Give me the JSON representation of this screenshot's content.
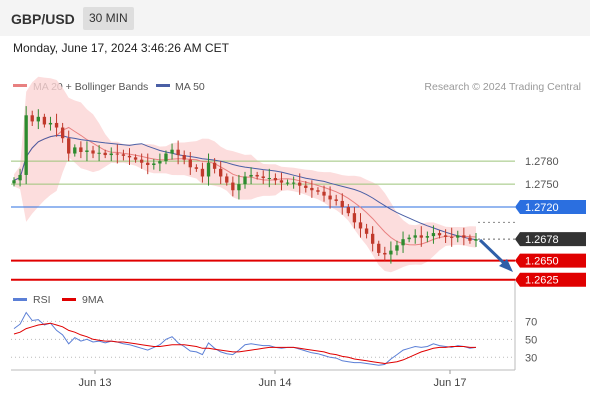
{
  "header": {
    "pair": "GBP/USD",
    "interval": "30 MIN",
    "datetime": "Monday, June 17, 2024 3:46:26 AM CET"
  },
  "legend": {
    "ma20_bb": "MA 20 + Bollinger Bands",
    "ma50": "MA 50",
    "credit": "Research © 2024 Trading Central",
    "rsi": "RSI",
    "rsi_ma": "9MA"
  },
  "colors": {
    "candle_up": "#2e8b2e",
    "candle_down": "#c0392b",
    "bollinger_fill": "#fbd5d5",
    "ma20": "#e88080",
    "ma50": "#4a5fa5",
    "support": "#e00000",
    "resistance_blue": "#2b6fe0",
    "green_level": "#9cc47a",
    "last_price": "#333333",
    "rsi": "#5b7fd6",
    "rsi_ma": "#e00000"
  },
  "chart_data": [
    {
      "type": "candlestick",
      "y_range": [
        1.2605,
        1.286
      ],
      "x_labels": [
        "Jun 13",
        "Jun 14",
        "Jun 17"
      ],
      "levels": [
        {
          "label": "1.2780",
          "value": 1.278,
          "style": "green-line"
        },
        {
          "label": "1.2750",
          "value": 1.275,
          "style": "green-line"
        },
        {
          "label": "1.2720",
          "value": 1.272,
          "style": "blue-badge"
        },
        {
          "label": "1.2678",
          "value": 1.2678,
          "style": "last-price-badge"
        },
        {
          "label": "1.2650",
          "value": 1.265,
          "style": "red-badge"
        },
        {
          "label": "1.2625",
          "value": 1.2625,
          "style": "red-badge"
        }
      ],
      "close_path": [
        1.2755,
        1.2762,
        1.284,
        1.2832,
        1.2838,
        1.2828,
        1.283,
        1.2824,
        1.281,
        1.279,
        1.2798,
        1.2792,
        1.2794,
        1.279,
        1.2791,
        1.2788,
        1.279,
        1.2789,
        1.2787,
        1.2785,
        1.2782,
        1.2778,
        1.2775,
        1.2777,
        1.278,
        1.279,
        1.2795,
        1.2788,
        1.2782,
        1.2772,
        1.277,
        1.276,
        1.2778,
        1.277,
        1.276,
        1.2752,
        1.2742,
        1.275,
        1.276,
        1.2762,
        1.276,
        1.2758,
        1.2758,
        1.2755,
        1.2752,
        1.2752,
        1.2752,
        1.2748,
        1.2745,
        1.2742,
        1.274,
        1.2735,
        1.273,
        1.2728,
        1.272,
        1.2712,
        1.27,
        1.2692,
        1.2685,
        1.2672,
        1.266,
        1.2658,
        1.2663,
        1.267,
        1.2678,
        1.268,
        1.2683,
        1.268,
        1.2682,
        1.2686,
        1.2683,
        1.2681,
        1.268,
        1.2683,
        1.268,
        1.2676,
        1.2678
      ]
    },
    {
      "type": "line",
      "name": "RSI",
      "y_ticks": [
        30,
        50,
        70
      ],
      "y_range": [
        18,
        85
      ],
      "rsi": [
        62,
        67,
        80,
        71,
        72,
        66,
        68,
        60,
        55,
        45,
        52,
        48,
        50,
        47,
        48,
        46,
        48,
        47,
        45,
        44,
        42,
        40,
        38,
        41,
        44,
        50,
        53,
        46,
        42,
        37,
        36,
        33,
        46,
        40,
        36,
        34,
        33,
        38,
        44,
        45,
        44,
        43,
        43,
        41,
        40,
        41,
        41,
        39,
        37,
        35,
        34,
        32,
        30,
        29,
        26,
        25,
        24,
        24,
        23,
        22,
        21,
        22,
        28,
        33,
        38,
        40,
        42,
        41,
        42,
        45,
        43,
        42,
        41,
        43,
        42,
        40,
        41
      ],
      "ma": [
        56,
        58,
        62,
        64,
        66,
        67,
        68,
        66,
        64,
        60,
        58,
        55,
        53,
        50,
        49,
        48,
        48,
        47,
        47,
        46,
        45,
        44,
        43,
        42,
        42,
        43,
        44,
        44,
        44,
        43,
        42,
        40,
        40,
        39,
        38,
        37,
        36,
        36,
        37,
        38,
        39,
        40,
        41,
        41,
        41,
        41,
        41,
        40,
        39,
        38,
        37,
        36,
        34,
        33,
        31,
        30,
        28,
        27,
        26,
        25,
        24,
        23,
        24,
        25,
        27,
        30,
        33,
        36,
        38,
        40,
        41,
        41,
        42,
        42,
        42,
        41,
        41
      ]
    }
  ]
}
